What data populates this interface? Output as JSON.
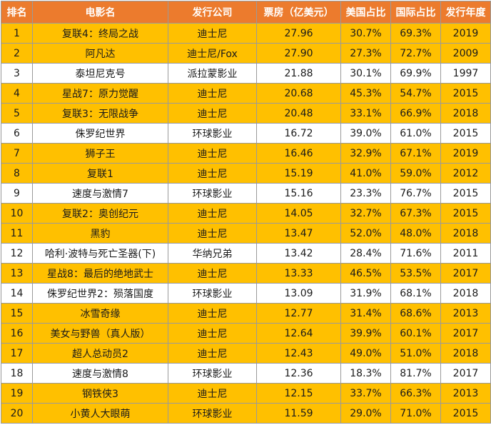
{
  "chart_data": {
    "type": "table",
    "columns": [
      "排名",
      "电影名",
      "发行公司",
      "票房（亿美元）",
      "美国占比",
      "国际占比",
      "发行年度"
    ],
    "highlight_color": "#ffc000",
    "header_color": "#ec7b2d",
    "rows": [
      {
        "rank": "1",
        "title": "复联4：终局之战",
        "company": "迪士尼",
        "gross": "27.96",
        "us": "30.7%",
        "intl": "69.3%",
        "year": "2019",
        "highlight": true
      },
      {
        "rank": "2",
        "title": "阿凡达",
        "company": "迪士尼/Fox",
        "gross": "27.90",
        "us": "27.3%",
        "intl": "72.7%",
        "year": "2009",
        "highlight": true
      },
      {
        "rank": "3",
        "title": "泰坦尼克号",
        "company": "派拉蒙影业",
        "gross": "21.88",
        "us": "30.1%",
        "intl": "69.9%",
        "year": "1997",
        "highlight": false
      },
      {
        "rank": "4",
        "title": "星战7：原力觉醒",
        "company": "迪士尼",
        "gross": "20.68",
        "us": "45.3%",
        "intl": "54.7%",
        "year": "2015",
        "highlight": true
      },
      {
        "rank": "5",
        "title": "复联3：无限战争",
        "company": "迪士尼",
        "gross": "20.48",
        "us": "33.1%",
        "intl": "66.9%",
        "year": "2018",
        "highlight": true
      },
      {
        "rank": "6",
        "title": "侏罗纪世界",
        "company": "环球影业",
        "gross": "16.72",
        "us": "39.0%",
        "intl": "61.0%",
        "year": "2015",
        "highlight": false
      },
      {
        "rank": "7",
        "title": "狮子王",
        "company": "迪士尼",
        "gross": "16.46",
        "us": "32.9%",
        "intl": "67.1%",
        "year": "2019",
        "highlight": true
      },
      {
        "rank": "8",
        "title": "复联1",
        "company": "迪士尼",
        "gross": "15.19",
        "us": "41.0%",
        "intl": "59.0%",
        "year": "2012",
        "highlight": true
      },
      {
        "rank": "9",
        "title": "速度与激情7",
        "company": "环球影业",
        "gross": "15.16",
        "us": "23.3%",
        "intl": "76.7%",
        "year": "2015",
        "highlight": false
      },
      {
        "rank": "10",
        "title": "复联2：奥创纪元",
        "company": "迪士尼",
        "gross": "14.05",
        "us": "32.7%",
        "intl": "67.3%",
        "year": "2015",
        "highlight": true
      },
      {
        "rank": "11",
        "title": "黑豹",
        "company": "迪士尼",
        "gross": "13.47",
        "us": "52.0%",
        "intl": "48.0%",
        "year": "2018",
        "highlight": true
      },
      {
        "rank": "12",
        "title": "哈利·波特与死亡圣器(下)",
        "company": "华纳兄弟",
        "gross": "13.42",
        "us": "28.4%",
        "intl": "71.6%",
        "year": "2011",
        "highlight": false
      },
      {
        "rank": "13",
        "title": "星战8：最后的绝地武士",
        "company": "迪士尼",
        "gross": "13.33",
        "us": "46.5%",
        "intl": "53.5%",
        "year": "2017",
        "highlight": true
      },
      {
        "rank": "14",
        "title": "侏罗纪世界2：殒落国度",
        "company": "环球影业",
        "gross": "13.09",
        "us": "31.9%",
        "intl": "68.1%",
        "year": "2018",
        "highlight": false
      },
      {
        "rank": "15",
        "title": "冰雪奇缘",
        "company": "迪士尼",
        "gross": "12.77",
        "us": "31.4%",
        "intl": "68.6%",
        "year": "2013",
        "highlight": true
      },
      {
        "rank": "16",
        "title": "美女与野兽（真人版）",
        "company": "迪士尼",
        "gross": "12.64",
        "us": "39.9%",
        "intl": "60.1%",
        "year": "2017",
        "highlight": true
      },
      {
        "rank": "17",
        "title": "超人总动员2",
        "company": "迪士尼",
        "gross": "12.43",
        "us": "49.0%",
        "intl": "51.0%",
        "year": "2018",
        "highlight": true
      },
      {
        "rank": "18",
        "title": "速度与激情8",
        "company": "环球影业",
        "gross": "12.36",
        "us": "18.3%",
        "intl": "81.7%",
        "year": "2017",
        "highlight": false
      },
      {
        "rank": "19",
        "title": "钢铁侠3",
        "company": "迪士尼",
        "gross": "12.15",
        "us": "33.7%",
        "intl": "66.3%",
        "year": "2013",
        "highlight": true
      },
      {
        "rank": "20",
        "title": "小黄人大眼萌",
        "company": "环球影业",
        "gross": "11.59",
        "us": "29.0%",
        "intl": "71.0%",
        "year": "2015",
        "highlight": true
      }
    ]
  }
}
